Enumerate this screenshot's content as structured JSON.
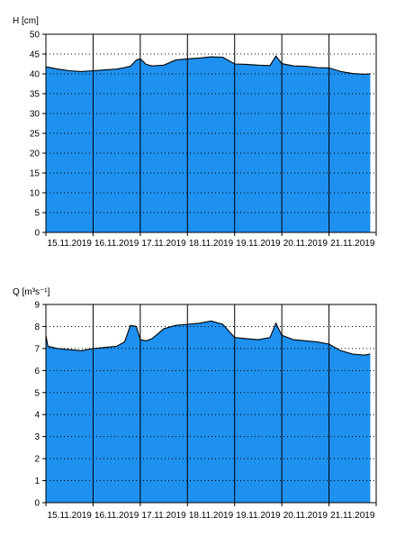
{
  "colors": {
    "fill": "#1e90ef",
    "line": "#000000",
    "grid": "#000000",
    "background": "#ffffff"
  },
  "chart_data": [
    {
      "type": "area",
      "title": "",
      "ylabel": "H [cm]",
      "xlabel": "",
      "ylim": [
        0,
        50
      ],
      "yticks": [
        0,
        5,
        10,
        15,
        20,
        25,
        30,
        35,
        40,
        45,
        50
      ],
      "xlim": [
        "2019-11-15 00:00",
        "2019-11-22 00:00"
      ],
      "xtick_labels": [
        "15.11.2019",
        "16.11.2019",
        "17.11.2019",
        "18.11.2019",
        "19.11.2019",
        "20.11.2019",
        "21.11.2019"
      ],
      "grid": true,
      "x": [
        "2019-11-15 00:00",
        "2019-11-15 06:00",
        "2019-11-15 12:00",
        "2019-11-15 18:00",
        "2019-11-16 00:00",
        "2019-11-16 06:00",
        "2019-11-16 12:00",
        "2019-11-16 16:00",
        "2019-11-16 19:00",
        "2019-11-16 22:00",
        "2019-11-17 00:00",
        "2019-11-17 03:00",
        "2019-11-17 06:00",
        "2019-11-17 12:00",
        "2019-11-17 18:00",
        "2019-11-18 00:00",
        "2019-11-18 06:00",
        "2019-11-18 12:00",
        "2019-11-18 18:00",
        "2019-11-19 00:00",
        "2019-11-19 06:00",
        "2019-11-19 12:00",
        "2019-11-19 18:00",
        "2019-11-19 21:00",
        "2019-11-20 00:00",
        "2019-11-20 06:00",
        "2019-11-20 12:00",
        "2019-11-20 18:00",
        "2019-11-21 00:00",
        "2019-11-21 06:00",
        "2019-11-21 12:00",
        "2019-11-21 18:00",
        "2019-11-21 21:00"
      ],
      "values": [
        41.8,
        41.2,
        40.8,
        40.6,
        40.8,
        41.0,
        41.2,
        41.6,
        41.9,
        43.5,
        43.8,
        42.4,
        42.0,
        42.2,
        43.5,
        43.8,
        44.0,
        44.3,
        44.2,
        42.5,
        42.4,
        42.2,
        42.1,
        44.5,
        42.6,
        42.0,
        41.9,
        41.6,
        41.5,
        40.6,
        40.1,
        39.9,
        40.0
      ]
    },
    {
      "type": "area",
      "title": "",
      "ylabel": "Q [m³s⁻¹]",
      "xlabel": "",
      "ylim": [
        0,
        9
      ],
      "yticks": [
        0,
        1,
        2,
        3,
        4,
        5,
        6,
        7,
        8,
        9
      ],
      "xlim": [
        "2019-11-15 00:00",
        "2019-11-22 00:00"
      ],
      "xtick_labels": [
        "15.11.2019",
        "16.11.2019",
        "17.11.2019",
        "18.11.2019",
        "19.11.2019",
        "20.11.2019",
        "21.11.2019"
      ],
      "grid": true,
      "x": [
        "2019-11-15 00:00",
        "2019-11-15 01:00",
        "2019-11-15 06:00",
        "2019-11-15 12:00",
        "2019-11-15 18:00",
        "2019-11-16 00:00",
        "2019-11-16 06:00",
        "2019-11-16 12:00",
        "2019-11-16 16:00",
        "2019-11-16 19:00",
        "2019-11-16 22:00",
        "2019-11-17 00:00",
        "2019-11-17 03:00",
        "2019-11-17 06:00",
        "2019-11-17 12:00",
        "2019-11-17 18:00",
        "2019-11-18 00:00",
        "2019-11-18 06:00",
        "2019-11-18 12:00",
        "2019-11-18 18:00",
        "2019-11-19 00:00",
        "2019-11-19 06:00",
        "2019-11-19 12:00",
        "2019-11-19 18:00",
        "2019-11-19 21:00",
        "2019-11-20 00:00",
        "2019-11-20 06:00",
        "2019-11-20 12:00",
        "2019-11-20 18:00",
        "2019-11-21 00:00",
        "2019-11-21 06:00",
        "2019-11-21 12:00",
        "2019-11-21 18:00",
        "2019-11-21 21:00"
      ],
      "values": [
        7.6,
        7.1,
        7.0,
        6.95,
        6.9,
        7.0,
        7.05,
        7.1,
        7.3,
        8.05,
        8.0,
        7.4,
        7.35,
        7.45,
        7.9,
        8.05,
        8.1,
        8.15,
        8.25,
        8.1,
        7.5,
        7.45,
        7.4,
        7.5,
        8.15,
        7.6,
        7.4,
        7.35,
        7.3,
        7.2,
        6.9,
        6.75,
        6.7,
        6.75
      ]
    }
  ]
}
